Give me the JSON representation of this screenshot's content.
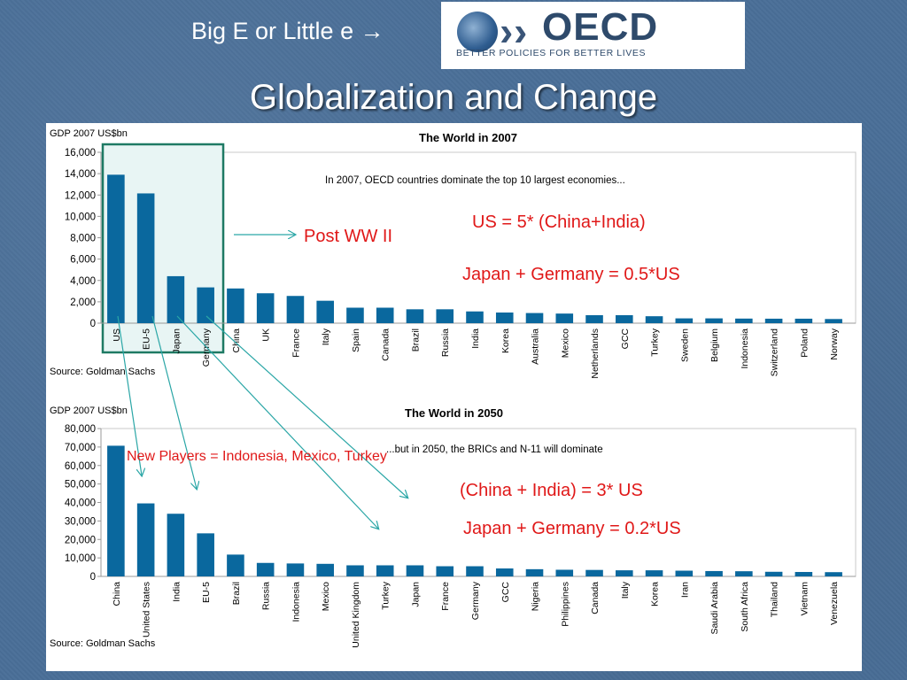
{
  "subtitle": "Big E or Little e →",
  "logo": {
    "name": "OECD",
    "tagline": "BETTER POLICIES FOR BETTER LIVES"
  },
  "title": "Globalization and Change",
  "annotations": {
    "post_ww2": "Post WW II",
    "us_ratio": "US = 5* (China+India)",
    "japan_germany_2007": "Japan + Germany = 0.5*US",
    "new_players": "New Players = Indonesia, Mexico, Turkey",
    "china_india_2050": "(China + India) = 3* US",
    "japan_germany_2050": "Japan + Germany = 0.2*US"
  },
  "colors": {
    "bar": "#0a689e",
    "highlight_border": "#1e7a64",
    "highlight_fill": "#e8f5f4",
    "annotation": "#e01818",
    "arrow": "#2aa6a6"
  },
  "chart_data": [
    {
      "type": "bar",
      "title": "The World in 2007",
      "subtitle": "In 2007, OECD countries dominate the top 10 largest economies...",
      "ylabel": "GDP 2007 US$bn",
      "source": "Source: Goldman Sachs",
      "ylim": [
        0,
        16000
      ],
      "yticks": [
        0,
        2000,
        4000,
        6000,
        8000,
        10000,
        12000,
        14000,
        16000
      ],
      "ytick_labels": [
        "0",
        "2,000",
        "4,000",
        "6,000",
        "8,000",
        "10,000",
        "12,000",
        "14,000",
        "16,000"
      ],
      "categories": [
        "US",
        "EU-5",
        "Japan",
        "Germany",
        "China",
        "UK",
        "France",
        "Italy",
        "Spain",
        "Canada",
        "Brazil",
        "Russia",
        "India",
        "Korea",
        "Australia",
        "Mexico",
        "Netherlands",
        "GCC",
        "Turkey",
        "Sweden",
        "Belgium",
        "Indonesia",
        "Switzerland",
        "Poland",
        "Norway"
      ],
      "values": [
        13900,
        12150,
        4400,
        3350,
        3250,
        2800,
        2550,
        2100,
        1450,
        1450,
        1300,
        1300,
        1100,
        1000,
        950,
        900,
        750,
        750,
        650,
        450,
        450,
        430,
        420,
        420,
        390
      ],
      "highlight": [
        "US",
        "EU-5",
        "Japan",
        "Germany"
      ]
    },
    {
      "type": "bar",
      "title": "The World in 2050",
      "subtitle": "...but in 2050, the BRICs and N-11 will dominate",
      "ylabel": "GDP 2007 US$bn",
      "source": "Source: Goldman Sachs",
      "ylim": [
        0,
        80000
      ],
      "yticks": [
        0,
        10000,
        20000,
        30000,
        40000,
        50000,
        60000,
        70000,
        80000
      ],
      "ytick_labels": [
        "0",
        "10,000",
        "20,000",
        "30,000",
        "40,000",
        "50,000",
        "60,000",
        "70,000",
        "80,000"
      ],
      "categories": [
        "China",
        "United States",
        "India",
        "EU-5",
        "Brazil",
        "Russia",
        "Indonesia",
        "Mexico",
        "United Kingdom",
        "Turkey",
        "Japan",
        "France",
        "Germany",
        "GCC",
        "Nigeria",
        "Philippines",
        "Canada",
        "Italy",
        "Korea",
        "Iran",
        "Saudi Arabia",
        "South Africa",
        "Thailand",
        "Vietnam",
        "Venezuela"
      ],
      "values": [
        70700,
        39500,
        33900,
        23300,
        11800,
        7300,
        7000,
        6800,
        6000,
        6000,
        6000,
        5500,
        5500,
        4300,
        3900,
        3600,
        3500,
        3300,
        3300,
        3100,
        2900,
        2800,
        2500,
        2400,
        2300
      ]
    }
  ]
}
